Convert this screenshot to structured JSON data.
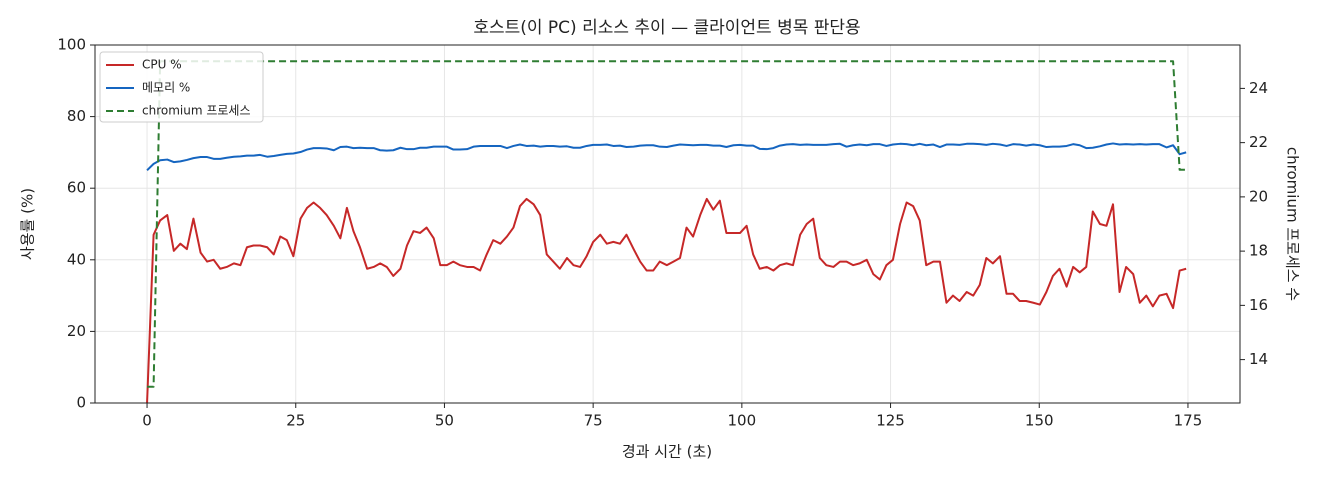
{
  "chart_data": {
    "type": "line",
    "title": "호스트(이 PC) 리소스 추이 — 클라이언트 병목 판단용",
    "x_label": "경과 시간 (초)",
    "y_label": "사용률 (%)",
    "y2_label": "chromium 프로세스 수",
    "x": [
      0,
      1.1,
      2.2,
      3.4,
      4.5,
      5.6,
      6.7,
      7.8,
      9,
      10.1,
      11.2,
      12.3,
      13.4,
      14.6,
      15.7,
      16.8,
      17.9,
      19,
      20.2,
      21.3,
      22.4,
      23.5,
      24.6,
      25.8,
      26.9,
      28,
      29.1,
      30.2,
      31.4,
      32.5,
      33.6,
      34.7,
      35.8,
      37,
      38.1,
      39.2,
      40.3,
      41.4,
      42.6,
      43.7,
      44.8,
      45.9,
      47,
      48.2,
      49.3,
      50.4,
      51.5,
      52.6,
      53.8,
      54.9,
      56,
      57.1,
      58.2,
      59.4,
      60.5,
      61.6,
      62.7,
      63.8,
      65,
      66.1,
      67.2,
      68.3,
      69.4,
      70.6,
      71.7,
      72.8,
      73.9,
      75,
      76.2,
      77.3,
      78.4,
      79.5,
      80.6,
      81.8,
      82.9,
      84,
      85.1,
      86.2,
      87.4,
      88.5,
      89.6,
      90.7,
      91.8,
      93,
      94.1,
      95.2,
      96.3,
      97.4,
      98.6,
      99.7,
      100.8,
      101.9,
      103,
      104.2,
      105.3,
      106.4,
      107.5,
      108.6,
      109.8,
      110.9,
      112,
      113.1,
      114.2,
      115.4,
      116.5,
      117.6,
      118.7,
      119.8,
      121,
      122.1,
      123.2,
      124.3,
      125.4,
      126.6,
      127.7,
      128.8,
      129.9,
      131,
      132.2,
      133.3,
      134.4,
      135.5,
      136.6,
      137.8,
      138.9,
      140,
      141.1,
      142.2,
      143.4,
      144.5,
      145.6,
      146.7,
      147.8,
      149,
      150.1,
      151.2,
      152.3,
      153.4,
      154.6,
      155.7,
      156.8,
      157.9,
      159,
      160.2,
      161.3,
      162.4,
      163.5,
      164.6,
      165.8,
      166.9,
      168,
      169.1,
      170.2,
      171.4,
      172.5,
      173.6,
      174.7
    ],
    "series": [
      {
        "name": "CPU %",
        "color": "#c62828",
        "values": [
          0,
          47,
          51,
          52.5,
          42.5,
          44.5,
          43,
          51.5,
          42,
          39.5,
          40,
          37.5,
          38,
          39,
          38.5,
          43.5,
          44,
          44,
          43.5,
          41.5,
          46.5,
          45.5,
          41,
          51.5,
          54.5,
          56,
          54.5,
          52.5,
          49.5,
          46,
          54.5,
          48,
          43.5,
          37.5,
          38,
          39,
          38,
          35.5,
          37.5,
          44,
          48,
          47.5,
          49,
          46,
          38.5,
          38.5,
          39.5,
          38.5,
          38,
          38,
          37,
          41.5,
          45.5,
          44.5,
          46.5,
          49,
          55,
          57,
          55.5,
          52.5,
          41.5,
          39.5,
          37.5,
          40.5,
          38.5,
          38,
          41,
          45,
          47,
          44.5,
          45,
          44.5,
          47,
          43,
          39.5,
          37,
          37,
          39.5,
          38.5,
          39.5,
          40.5,
          49,
          46.5,
          52.5,
          57,
          54,
          56.5,
          47.5,
          47.5,
          47.5,
          49.5,
          41.5,
          37.5,
          38,
          37,
          38.5,
          39,
          38.5,
          47,
          50,
          51.5,
          40.5,
          38.5,
          38,
          39.5,
          39.5,
          38.5,
          39,
          40,
          36,
          34.5,
          38.5,
          40,
          50,
          56,
          55,
          51,
          38.5,
          39.5,
          39.5,
          28,
          30,
          28.5,
          31,
          30,
          33,
          40.5,
          39,
          41,
          30.5,
          30.5,
          28.5,
          28.5,
          28,
          27.5,
          31,
          35.5,
          37.5,
          32.5,
          38,
          36.5,
          38,
          53.5,
          50,
          49.5,
          55.5,
          31,
          38,
          36,
          28,
          30,
          27,
          30,
          30.5,
          26.5,
          37,
          37.5
        ]
      },
      {
        "name": "메모리 %",
        "color": "#1565c0",
        "values": [
          65,
          66.8,
          67.8,
          68,
          67.3,
          67.5,
          67.9,
          68.4,
          68.7,
          68.7,
          68.2,
          68.2,
          68.5,
          68.8,
          68.9,
          69.1,
          69.1,
          69.3,
          68.8,
          69,
          69.3,
          69.6,
          69.7,
          70.1,
          70.8,
          71.2,
          71.2,
          71.1,
          70.6,
          71.5,
          71.6,
          71.2,
          71.3,
          71.2,
          71.2,
          70.6,
          70.5,
          70.6,
          71.3,
          70.9,
          70.9,
          71.3,
          71.3,
          71.6,
          71.6,
          71.6,
          70.8,
          70.8,
          70.9,
          71.6,
          71.8,
          71.8,
          71.8,
          71.8,
          71.2,
          71.8,
          72.2,
          71.8,
          71.9,
          71.6,
          71.8,
          71.8,
          71.6,
          71.7,
          71.3,
          71.3,
          71.8,
          72.1,
          72.1,
          72.2,
          71.8,
          71.9,
          71.5,
          71.6,
          71.9,
          72,
          72,
          71.6,
          71.5,
          71.9,
          72.2,
          72.1,
          72,
          72.1,
          72.1,
          71.9,
          71.9,
          71.5,
          72,
          72.1,
          71.9,
          71.9,
          71,
          70.9,
          71.2,
          71.9,
          72.2,
          72.3,
          72.1,
          72.2,
          72.1,
          72.1,
          72.1,
          72.3,
          72.4,
          71.6,
          72,
          72.2,
          72,
          72.3,
          72.3,
          71.8,
          72.2,
          72.4,
          72.3,
          72,
          72.4,
          72,
          72.2,
          71.5,
          72.2,
          72.2,
          72.1,
          72.4,
          72.4,
          72.3,
          72.1,
          72.4,
          72.2,
          71.8,
          72.3,
          72.2,
          71.9,
          72.2,
          72,
          71.5,
          71.6,
          71.6,
          71.8,
          72.3,
          72,
          71.2,
          71.3,
          71.7,
          72.2,
          72.5,
          72.2,
          72.3,
          72.2,
          72.3,
          72.2,
          72.3,
          72.3,
          71.4,
          72,
          69.5,
          70
        ]
      },
      {
        "name": "chromium 프로세스",
        "color": "#2e7d32",
        "dashed": true,
        "axis": "y2",
        "x": [
          0,
          1.1,
          2.2,
          172.5,
          173.6,
          174.7
        ],
        "values": [
          13,
          13,
          25,
          25,
          21,
          21
        ]
      }
    ],
    "xlim": [
      -8.75,
      183.75
    ],
    "ylim": [
      0,
      100
    ],
    "y2lim": [
      12.4,
      25.6
    ],
    "xticks": [
      0,
      25,
      50,
      75,
      100,
      125,
      150,
      175
    ],
    "yticks": [
      0,
      20,
      40,
      60,
      80,
      100
    ],
    "y2ticks": [
      14,
      16,
      18,
      20,
      22,
      24
    ],
    "grid": true,
    "legend": "upper left"
  }
}
